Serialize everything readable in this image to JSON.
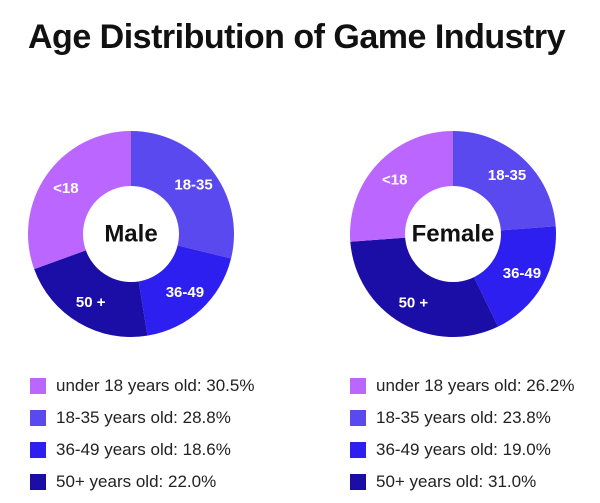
{
  "title": "Age Distribution of Game Industry",
  "colors": {
    "under18": "#BB66FF",
    "age18_35": "#5B49F0",
    "age36_49": "#2D1FF0",
    "age50plus": "#1B0EA6"
  },
  "chart_data": [
    {
      "type": "pie",
      "center_label": "Male",
      "slices": [
        {
          "key": "age18_35",
          "label": "18-35",
          "value": 28.8
        },
        {
          "key": "age36_49",
          "label": "36-49",
          "value": 18.6
        },
        {
          "key": "age50plus",
          "label": "50 +",
          "value": 22.0
        },
        {
          "key": "under18",
          "label": "<18",
          "value": 30.5
        }
      ]
    },
    {
      "type": "pie",
      "center_label": "Female",
      "slices": [
        {
          "key": "age18_35",
          "label": "18-35",
          "value": 23.8
        },
        {
          "key": "age36_49",
          "label": "36-49",
          "value": 19.0
        },
        {
          "key": "age50plus",
          "label": "50 +",
          "value": 31.0
        },
        {
          "key": "under18",
          "label": "<18",
          "value": 26.2
        }
      ]
    }
  ],
  "legend": {
    "male": [
      {
        "key": "under18",
        "text": "under 18 years old: 30.5%"
      },
      {
        "key": "age18_35",
        "text": "18-35 years old: 28.8%"
      },
      {
        "key": "age36_49",
        "text": "36-49 years old: 18.6%"
      },
      {
        "key": "age50plus",
        "text": "50+ years old: 22.0%"
      }
    ],
    "female": [
      {
        "key": "under18",
        "text": "under 18 years old: 26.2%"
      },
      {
        "key": "age18_35",
        "text": "18-35 years old: 23.8%"
      },
      {
        "key": "age36_49",
        "text": "36-49 years old: 19.0%"
      },
      {
        "key": "age50plus",
        "text": "50+ years old: 31.0%"
      }
    ]
  }
}
